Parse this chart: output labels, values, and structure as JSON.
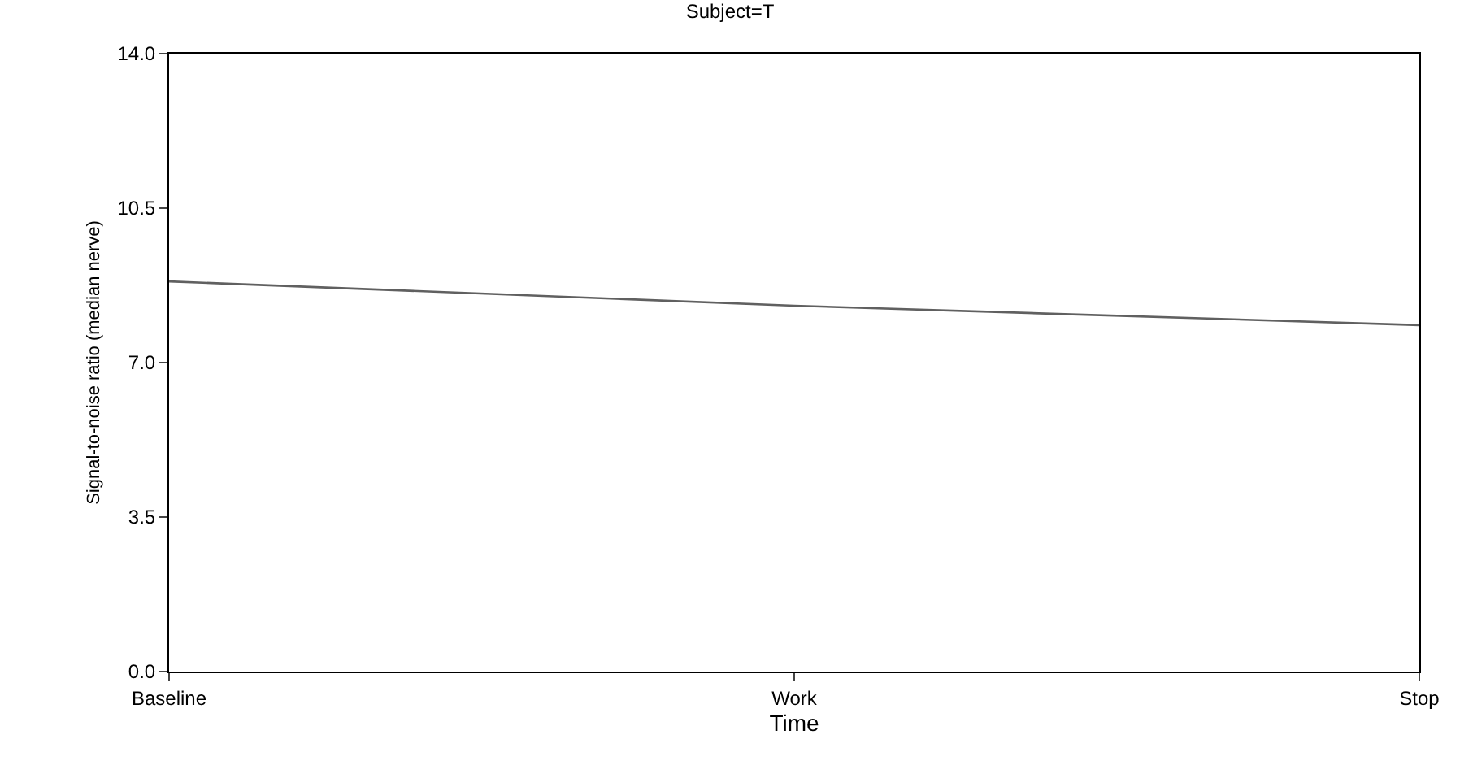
{
  "chart_data": {
    "type": "line",
    "title": "Subject=T",
    "xlabel": "Time",
    "ylabel": "Signal-to-noise ratio (median nerve)",
    "categories": [
      "Baseline",
      "Work",
      "Stop"
    ],
    "series": [
      {
        "color": "#606060",
        "values": [
          8.84,
          8.29,
          7.85
        ]
      }
    ],
    "ylim": [
      0,
      14
    ],
    "yticks": [
      {
        "value": 0,
        "label": "0.0"
      },
      {
        "value": 3.5,
        "label": "3.5"
      },
      {
        "value": 7,
        "label": "7.0"
      },
      {
        "value": 10.5,
        "label": "10.5"
      },
      {
        "value": 14,
        "label": "14.0"
      }
    ],
    "marker": "none",
    "line_style": "solid"
  }
}
